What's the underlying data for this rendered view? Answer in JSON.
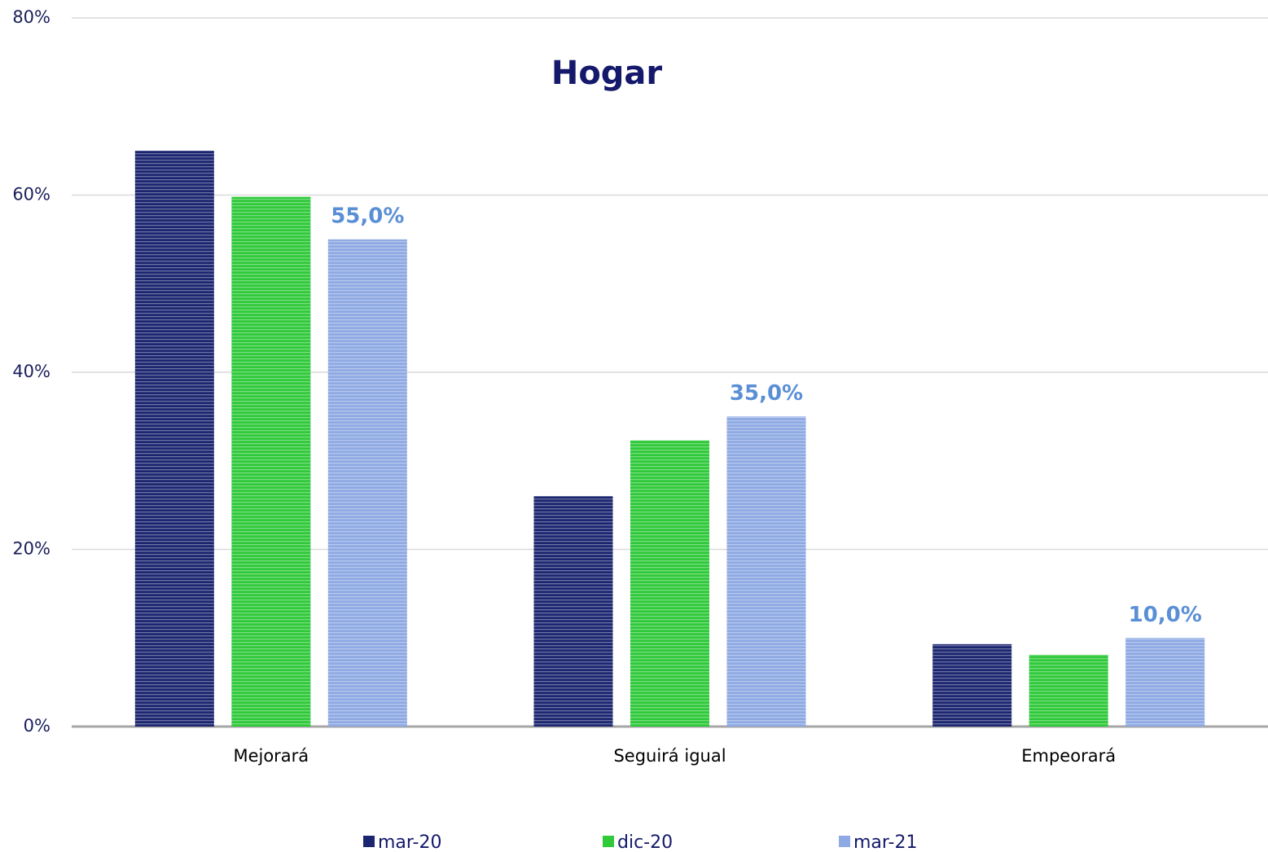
{
  "chart_data": {
    "type": "bar",
    "title": "Hogar",
    "categories": [
      "Mejorará",
      "Seguirá igual",
      "Empeorará"
    ],
    "series": [
      {
        "name": "mar-20",
        "color": "#1c2670",
        "values": [
          65,
          26,
          9.3
        ]
      },
      {
        "name": "dic-20",
        "color": "#2fc93a",
        "values": [
          59.8,
          32.3,
          8.1
        ]
      },
      {
        "name": "mar-21",
        "color": "#8ea9e3",
        "values": [
          55,
          35,
          10
        ],
        "value_labels": [
          "55,0%",
          "35,0%",
          "10,0%"
        ]
      }
    ],
    "ylim": [
      0,
      80
    ],
    "yticks": [
      {
        "value": 0,
        "label": "0%"
      },
      {
        "value": 20,
        "label": "20%"
      },
      {
        "value": 40,
        "label": "40%"
      },
      {
        "value": 60,
        "label": "60%"
      },
      {
        "value": 80,
        "label": "80%"
      }
    ],
    "grid": true,
    "legend": "bottom"
  }
}
